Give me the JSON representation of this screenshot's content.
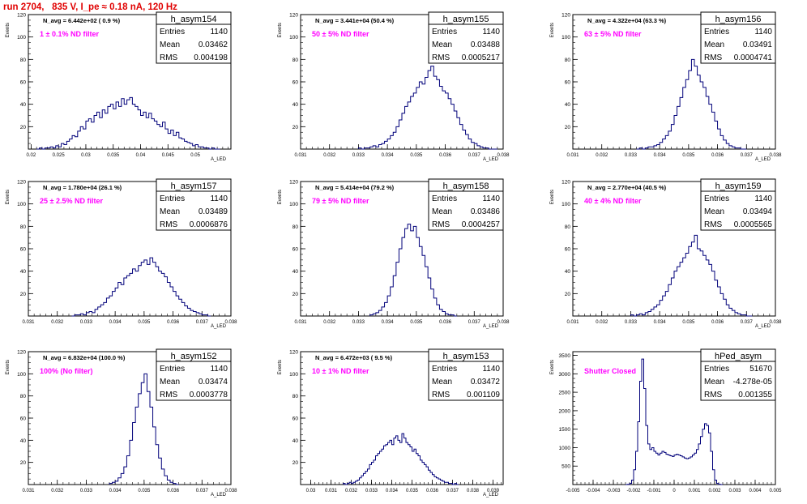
{
  "page": {
    "title": "run 2704,   835 V, I_pe ≈ 0.18 nA, 120 Hz"
  },
  "colors": {
    "hist": "#00007a",
    "frame": "#000000",
    "label": "#ff00ff",
    "title": "#e00000"
  },
  "chart_data": [
    {
      "type": "histogram",
      "name": "h_asym154",
      "stats": {
        "entries": "1140",
        "mean": "0.03462",
        "rms": "0.004198"
      },
      "navg": "N_avg = 6.442e+02 ( 0.9 %)",
      "label": "1 ± 0.1% ND filter",
      "ylabel": "Events",
      "xlabel": "A_LED",
      "xlim": [
        0.0195,
        0.0565
      ],
      "ylim": [
        0,
        120
      ],
      "xticks": [
        "0.02",
        "0.025",
        "0.03",
        "0.035",
        "0.04",
        "0.045",
        "0.05"
      ],
      "xtick_values": [
        0.02,
        0.025,
        0.03,
        0.035,
        0.04,
        0.045,
        0.05
      ],
      "yticks": [
        20,
        40,
        60,
        80,
        100,
        120
      ],
      "x_start": 0.021,
      "bin_width": 0.0005,
      "values": [
        0,
        1,
        0,
        1,
        1,
        2,
        1,
        3,
        2,
        5,
        4,
        7,
        9,
        12,
        11,
        16,
        20,
        18,
        25,
        27,
        24,
        30,
        33,
        28,
        35,
        32,
        38,
        40,
        36,
        42,
        38,
        45,
        40,
        44,
        46,
        40,
        38,
        35,
        30,
        33,
        28,
        32,
        27,
        25,
        22,
        20,
        24,
        18,
        14,
        17,
        12,
        15,
        10,
        9,
        7,
        6,
        5,
        3,
        4,
        2,
        2,
        1,
        1,
        0,
        1,
        0,
        0
      ]
    },
    {
      "type": "histogram",
      "name": "h_asym155",
      "stats": {
        "entries": "1140",
        "mean": "0.03488",
        "rms": "0.0005217"
      },
      "navg": "N_avg = 3.441e+04 (50.4 %)",
      "label": "50 ± 5% ND filter",
      "ylabel": "Events",
      "xlabel": "A_LED",
      "xlim": [
        0.031,
        0.038
      ],
      "ylim": [
        0,
        120
      ],
      "xticks": [
        "0.031",
        "0.032",
        "0.033",
        "0.034",
        "0.035",
        "0.036",
        "0.037",
        "0.038"
      ],
      "xtick_values": [
        0.031,
        0.032,
        0.033,
        0.034,
        0.035,
        0.036,
        0.037,
        0.038
      ],
      "yticks": [
        20,
        40,
        60,
        80,
        100,
        120
      ],
      "x_start": 0.033,
      "bin_width": 0.0001,
      "values": [
        1,
        0,
        1,
        1,
        2,
        3,
        2,
        4,
        5,
        7,
        9,
        12,
        15,
        20,
        26,
        32,
        38,
        42,
        47,
        50,
        55,
        60,
        58,
        64,
        70,
        74,
        65,
        62,
        56,
        52,
        50,
        45,
        40,
        34,
        28,
        22,
        17,
        13,
        9,
        6,
        5,
        3,
        2,
        1,
        1,
        0,
        0,
        0
      ]
    },
    {
      "type": "histogram",
      "name": "h_asym156",
      "stats": {
        "entries": "1140",
        "mean": "0.03491",
        "rms": "0.0004741"
      },
      "navg": "N_avg = 4.322e+04 (63.3 %)",
      "label": "63 ± 5% ND filter",
      "ylabel": "Events",
      "xlabel": "A_LED",
      "xlim": [
        0.031,
        0.038
      ],
      "ylim": [
        0,
        120
      ],
      "xticks": [
        "0.031",
        "0.032",
        "0.033",
        "0.034",
        "0.035",
        "0.036",
        "0.037",
        "0.038"
      ],
      "xtick_values": [
        0.031,
        0.032,
        0.033,
        0.034,
        0.035,
        0.036,
        0.037,
        0.038
      ],
      "yticks": [
        20,
        40,
        60,
        80,
        100,
        120
      ],
      "x_start": 0.0332,
      "bin_width": 0.0001,
      "values": [
        0,
        1,
        0,
        1,
        2,
        2,
        3,
        4,
        6,
        9,
        12,
        16,
        22,
        30,
        38,
        46,
        55,
        62,
        70,
        80,
        74,
        66,
        60,
        55,
        47,
        40,
        33,
        25,
        18,
        12,
        8,
        5,
        3,
        2,
        1,
        1,
        0,
        0
      ]
    },
    {
      "type": "histogram",
      "name": "h_asym157",
      "stats": {
        "entries": "1140",
        "mean": "0.03489",
        "rms": "0.0006876"
      },
      "navg": "N_avg = 1.780e+04 (26.1 %)",
      "label": "25 ± 2.5% ND filter",
      "ylabel": "Events",
      "xlabel": "A_LED",
      "xlim": [
        0.031,
        0.038
      ],
      "ylim": [
        0,
        120
      ],
      "xticks": [
        "0.031",
        "0.032",
        "0.033",
        "0.034",
        "0.035",
        "0.036",
        "0.037",
        "0.038"
      ],
      "xtick_values": [
        0.031,
        0.032,
        0.033,
        0.034,
        0.035,
        0.036,
        0.037,
        0.038
      ],
      "yticks": [
        20,
        40,
        60,
        80,
        100,
        120
      ],
      "x_start": 0.0325,
      "bin_width": 0.0001,
      "values": [
        0,
        1,
        1,
        2,
        1,
        3,
        4,
        3,
        6,
        8,
        10,
        12,
        16,
        18,
        22,
        25,
        30,
        28,
        34,
        36,
        38,
        42,
        40,
        45,
        48,
        50,
        46,
        52,
        48,
        44,
        40,
        38,
        35,
        30,
        26,
        22,
        18,
        15,
        12,
        9,
        7,
        5,
        4,
        3,
        2,
        1,
        1,
        0
      ]
    },
    {
      "type": "histogram",
      "name": "h_asym158",
      "stats": {
        "entries": "1140",
        "mean": "0.03486",
        "rms": "0.0004257"
      },
      "navg": "N_avg = 5.414e+04 (79.2 %)",
      "label": "79 ± 5% ND filter",
      "ylabel": "Events",
      "xlabel": "A_LED",
      "xlim": [
        0.031,
        0.038
      ],
      "ylim": [
        0,
        120
      ],
      "xticks": [
        "0.031",
        "0.032",
        "0.033",
        "0.034",
        "0.035",
        "0.036",
        "0.037",
        "0.038"
      ],
      "xtick_values": [
        0.031,
        0.032,
        0.033,
        0.034,
        0.035,
        0.036,
        0.037,
        0.038
      ],
      "yticks": [
        20,
        40,
        60,
        80,
        100,
        120
      ],
      "x_start": 0.0334,
      "bin_width": 0.0001,
      "values": [
        1,
        2,
        3,
        5,
        8,
        12,
        18,
        26,
        36,
        48,
        60,
        70,
        78,
        82,
        76,
        80,
        70,
        62,
        54,
        44,
        34,
        24,
        16,
        10,
        6,
        4,
        2,
        1,
        1,
        0
      ]
    },
    {
      "type": "histogram",
      "name": "h_asym159",
      "stats": {
        "entries": "1140",
        "mean": "0.03494",
        "rms": "0.0005565"
      },
      "navg": "N_avg = 2.770e+04 (40.5 %)",
      "label": "40 ± 4% ND filter",
      "ylabel": "Events",
      "xlabel": "A_LED",
      "xlim": [
        0.031,
        0.038
      ],
      "ylim": [
        0,
        120
      ],
      "xticks": [
        "0.031",
        "0.032",
        "0.033",
        "0.034",
        "0.035",
        "0.036",
        "0.037",
        "0.038"
      ],
      "xtick_values": [
        0.031,
        0.032,
        0.033,
        0.034,
        0.035,
        0.036,
        0.037,
        0.038
      ],
      "yticks": [
        20,
        40,
        60,
        80,
        100,
        120
      ],
      "x_start": 0.033,
      "bin_width": 0.0001,
      "values": [
        1,
        0,
        1,
        2,
        1,
        3,
        4,
        6,
        8,
        10,
        14,
        18,
        22,
        28,
        34,
        40,
        44,
        48,
        52,
        56,
        62,
        66,
        72,
        60,
        58,
        54,
        50,
        46,
        40,
        32,
        26,
        20,
        15,
        10,
        7,
        5,
        3,
        2,
        1,
        1,
        0,
        0
      ]
    },
    {
      "type": "histogram",
      "name": "h_asym152",
      "stats": {
        "entries": "1140",
        "mean": "0.03474",
        "rms": "0.0003778"
      },
      "navg": "N_avg = 6.832e+04 (100.0 %)",
      "label": "100% (No filter)",
      "ylabel": "Events",
      "xlabel": "A_LED",
      "xlim": [
        0.031,
        0.038
      ],
      "ylim": [
        0,
        120
      ],
      "xticks": [
        "0.031",
        "0.032",
        "0.033",
        "0.034",
        "0.035",
        "0.036",
        "0.037",
        "0.038"
      ],
      "xtick_values": [
        0.031,
        0.032,
        0.033,
        0.034,
        0.035,
        0.036,
        0.037,
        0.038
      ],
      "yticks": [
        20,
        40,
        60,
        80,
        100,
        120
      ],
      "x_start": 0.0338,
      "bin_width": 0.0001,
      "values": [
        1,
        2,
        3,
        6,
        10,
        16,
        26,
        40,
        56,
        70,
        82,
        92,
        100,
        84,
        70,
        52,
        36,
        24,
        14,
        8,
        4,
        2,
        1,
        0
      ]
    },
    {
      "type": "histogram",
      "name": "h_asym153",
      "stats": {
        "entries": "1140",
        "mean": "0.03472",
        "rms": "0.001109"
      },
      "navg": "N_avg = 6.472e+03 ( 9.5 %)",
      "label": "10 ± 1% ND filter",
      "ylabel": "Events",
      "xlabel": "A_LED",
      "xlim": [
        0.0295,
        0.0395
      ],
      "ylim": [
        0,
        120
      ],
      "xticks": [
        "0.03",
        "0.031",
        "0.032",
        "0.033",
        "0.034",
        "0.035",
        "0.036",
        "0.037",
        "0.038",
        "0.039"
      ],
      "xtick_values": [
        0.03,
        0.031,
        0.032,
        0.033,
        0.034,
        0.035,
        0.036,
        0.037,
        0.038,
        0.039
      ],
      "yticks": [
        20,
        40,
        60,
        80,
        100,
        120
      ],
      "x_start": 0.0316,
      "bin_width": 0.0001,
      "values": [
        1,
        0,
        1,
        2,
        1,
        2,
        3,
        4,
        6,
        8,
        10,
        12,
        14,
        18,
        20,
        22,
        26,
        28,
        30,
        32,
        35,
        36,
        38,
        40,
        36,
        42,
        44,
        40,
        38,
        46,
        42,
        38,
        36,
        34,
        30,
        32,
        28,
        26,
        22,
        20,
        18,
        16,
        13,
        11,
        9,
        7,
        6,
        5,
        4,
        3,
        2,
        2,
        1,
        1,
        0,
        1,
        0
      ]
    },
    {
      "type": "histogram",
      "name": "hPed_asym",
      "stats": {
        "entries": "51670",
        "mean": "-4.278e-05",
        "rms": "0.001355"
      },
      "label": "Shutter Closed",
      "ylabel": "Events",
      "xlabel": "",
      "xlim": [
        -0.005,
        0.005
      ],
      "ylim": [
        0,
        3600
      ],
      "xticks": [
        "-0.005",
        "-0.004",
        "-0.003",
        "-0.002",
        "-0.001",
        "0",
        "0.001",
        "0.002",
        "0.003",
        "0.004",
        "0.005"
      ],
      "xtick_values": [
        -0.005,
        -0.004,
        -0.003,
        -0.002,
        -0.001,
        0,
        0.001,
        0.002,
        0.003,
        0.004,
        0.005
      ],
      "yticks": [
        500,
        1000,
        1500,
        2000,
        2500,
        3000,
        3500
      ],
      "x_start": -0.0024,
      "bin_width": 0.0001,
      "values": [
        0,
        5,
        30,
        120,
        400,
        900,
        1700,
        2800,
        3400,
        2600,
        1600,
        1100,
        950,
        1000,
        900,
        850,
        800,
        850,
        900,
        870,
        820,
        800,
        780,
        760,
        800,
        820,
        800,
        780,
        750,
        720,
        700,
        720,
        750,
        800,
        850,
        950,
        1100,
        1300,
        1500,
        1650,
        1600,
        1400,
        900,
        400,
        120,
        30,
        5,
        0
      ]
    }
  ]
}
